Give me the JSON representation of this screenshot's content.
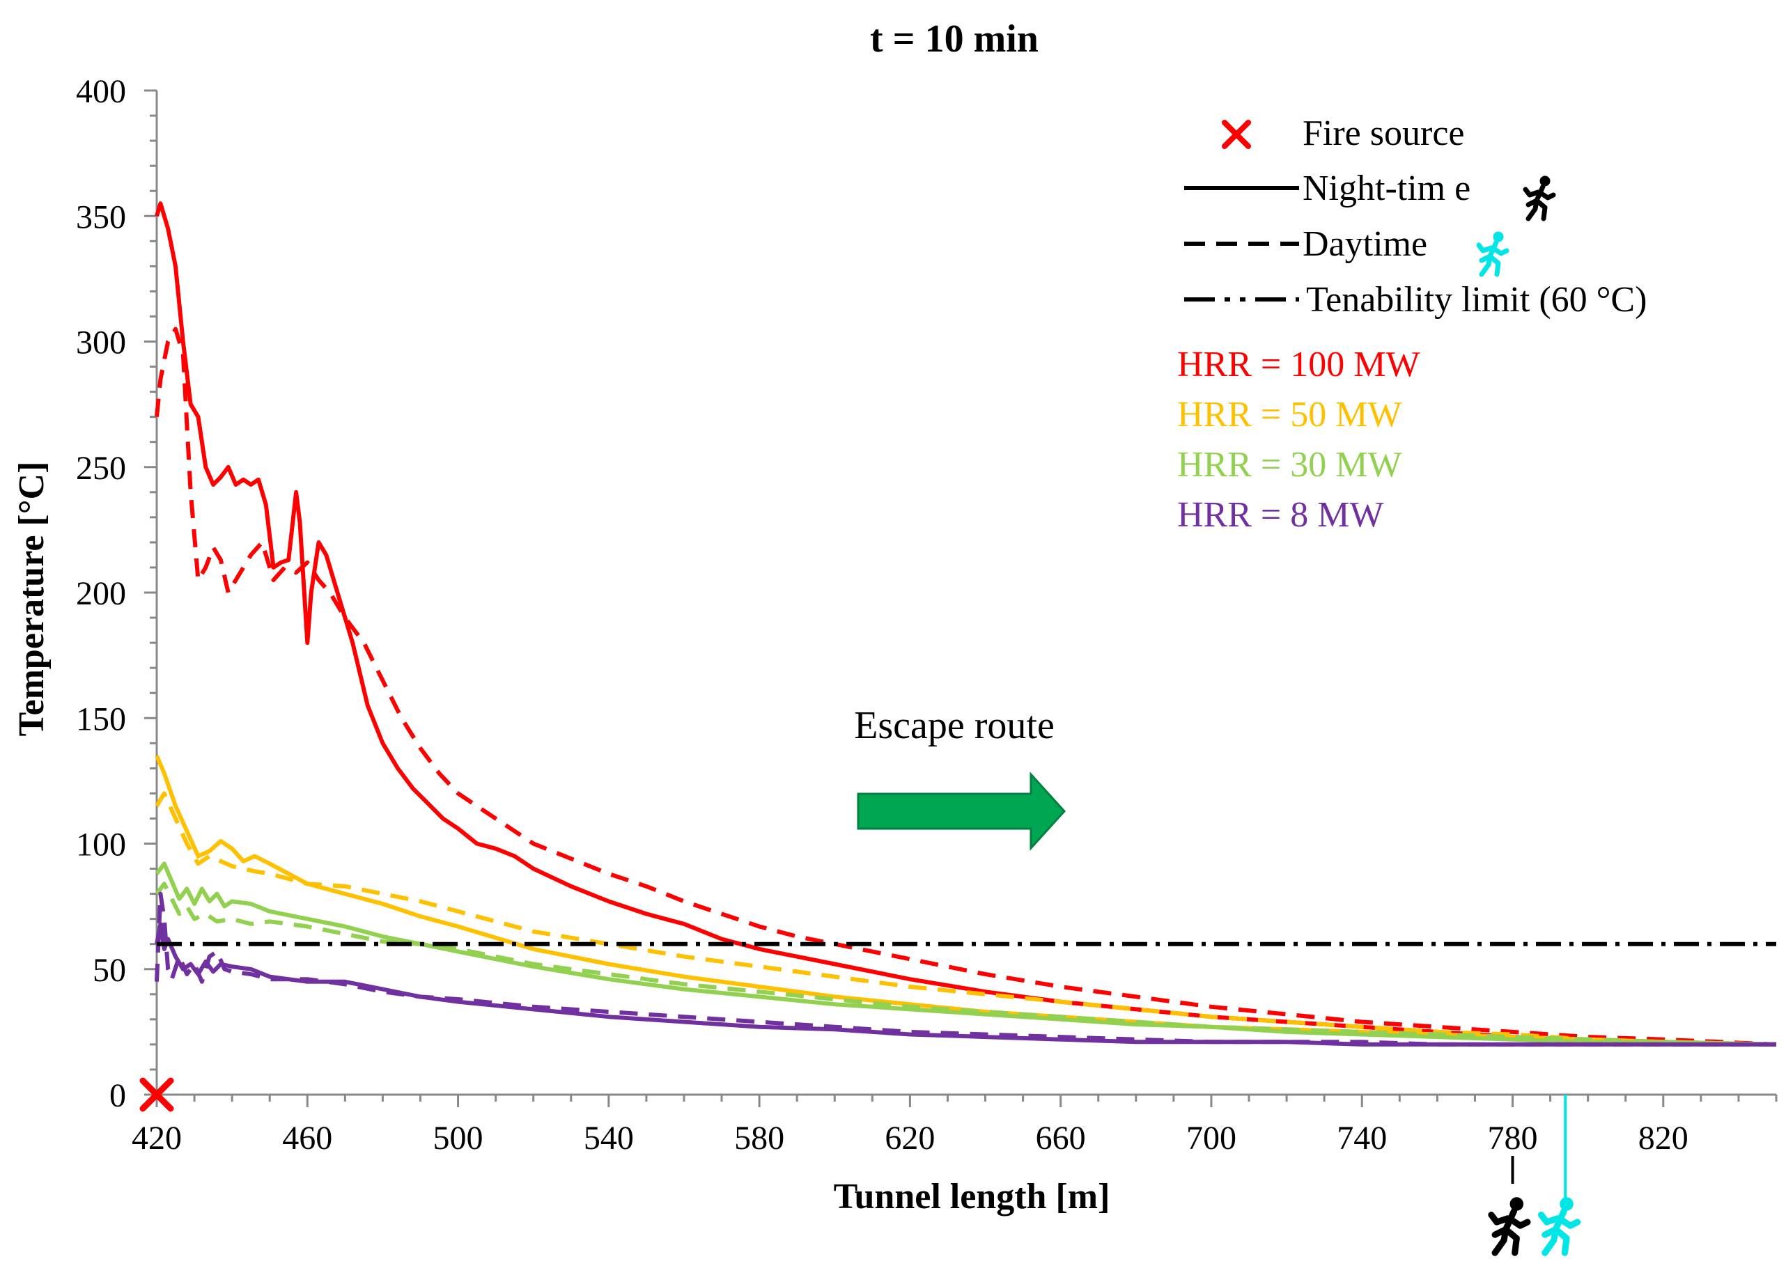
{
  "chart_data": {
    "type": "line",
    "title": "t = 10 min",
    "xlabel": "Tunnel length [m]",
    "ylabel": "Temperature  [°C]",
    "xlim": [
      420,
      850
    ],
    "ylim": [
      0,
      400
    ],
    "xticks": [
      420,
      460,
      500,
      540,
      580,
      620,
      660,
      700,
      740,
      780,
      820
    ],
    "yticks": [
      0,
      50,
      100,
      150,
      200,
      250,
      300,
      350,
      400
    ],
    "grid": false,
    "legend_position": "top-right",
    "legend": {
      "fire_source": "Fire source",
      "night_time": "Night-tim e",
      "daytime": "Daytime",
      "tenability": "Tenability limit (60 °C)"
    },
    "hrr_labels": [
      {
        "label": "HRR  = 100  MW",
        "color": "#ff0000"
      },
      {
        "label": "HRR  = 50  MW",
        "color": "#ffc000"
      },
      {
        "label": "HRR  = 30  MW",
        "color": "#92d050"
      },
      {
        "label": "HRR  = 8  MW",
        "color": "#7030a0"
      }
    ],
    "annotation": {
      "escape_route": "Escape route"
    },
    "tenability_limit": 60,
    "fire_source_x": 420,
    "person_markers": {
      "night_time_x": 780,
      "daytime_x": 794
    },
    "series": [
      {
        "name": "HRR 100 MW night-time",
        "color": "#ff0000",
        "dash": "solid",
        "x": [
          420,
          421,
          423,
          425,
          427,
          429,
          431,
          433,
          435,
          437,
          439,
          441,
          443,
          445,
          447,
          449,
          451,
          453,
          455,
          457,
          458,
          460,
          461,
          463,
          465,
          468,
          472,
          476,
          480,
          484,
          488,
          492,
          496,
          500,
          505,
          510,
          515,
          520,
          530,
          540,
          550,
          555,
          560,
          570,
          580,
          590,
          600,
          620,
          640,
          660,
          680,
          700,
          720,
          740,
          760,
          780,
          800,
          820,
          850
        ],
        "values": [
          350,
          355,
          345,
          330,
          300,
          275,
          270,
          250,
          243,
          246,
          250,
          243,
          245,
          243,
          245,
          235,
          210,
          212,
          213,
          240,
          228,
          180,
          200,
          220,
          215,
          200,
          180,
          155,
          140,
          130,
          122,
          116,
          110,
          106,
          100,
          98,
          95,
          90,
          83,
          77,
          72,
          70,
          68,
          62,
          58,
          55,
          52,
          46,
          41,
          37,
          34,
          31,
          29,
          27,
          25,
          23,
          22,
          21,
          20
        ]
      },
      {
        "name": "HRR 100 MW daytime",
        "color": "#ff0000",
        "dash": "dashed",
        "x": [
          420,
          421,
          423,
          425,
          427,
          429,
          431,
          433,
          435,
          437,
          439,
          441,
          443,
          445,
          448,
          451,
          454,
          457,
          460,
          463,
          466,
          470,
          475,
          480,
          485,
          490,
          495,
          500,
          510,
          520,
          530,
          540,
          550,
          560,
          570,
          580,
          590,
          600,
          620,
          640,
          660,
          680,
          700,
          720,
          740,
          760,
          780,
          800,
          820,
          850
        ],
        "values": [
          270,
          285,
          300,
          305,
          295,
          240,
          205,
          210,
          218,
          213,
          200,
          205,
          210,
          215,
          220,
          205,
          210,
          208,
          212,
          205,
          200,
          190,
          180,
          165,
          150,
          138,
          128,
          120,
          110,
          100,
          94,
          88,
          83,
          77,
          72,
          67,
          63,
          60,
          54,
          48,
          43,
          39,
          35,
          32,
          29,
          27,
          25,
          23,
          22,
          20
        ]
      },
      {
        "name": "HRR 50 MW night-time",
        "color": "#ffc000",
        "dash": "solid",
        "x": [
          420,
          422,
          425,
          428,
          431,
          434,
          437,
          440,
          443,
          446,
          450,
          455,
          460,
          470,
          480,
          490,
          500,
          520,
          540,
          560,
          580,
          600,
          620,
          640,
          660,
          680,
          700,
          720,
          740,
          760,
          780,
          800,
          820,
          850
        ],
        "values": [
          135,
          128,
          115,
          105,
          95,
          97,
          101,
          98,
          93,
          95,
          92,
          88,
          84,
          80,
          76,
          71,
          67,
          58,
          52,
          47,
          43,
          39,
          36,
          33,
          31,
          29,
          27,
          26,
          25,
          24,
          23,
          22,
          21,
          20
        ]
      },
      {
        "name": "HRR 50 MW daytime",
        "color": "#ffc000",
        "dash": "dashed",
        "x": [
          420,
          422,
          425,
          428,
          431,
          434,
          437,
          440,
          443,
          446,
          450,
          455,
          460,
          470,
          480,
          490,
          500,
          520,
          540,
          560,
          580,
          600,
          620,
          640,
          660,
          680,
          700,
          720,
          740,
          760,
          780,
          800,
          820,
          850
        ],
        "values": [
          115,
          120,
          110,
          100,
          92,
          95,
          93,
          91,
          90,
          89,
          88,
          86,
          84,
          83,
          80,
          77,
          73,
          65,
          60,
          55,
          51,
          47,
          43,
          40,
          37,
          34,
          31,
          29,
          27,
          25,
          24,
          22,
          21,
          20
        ]
      },
      {
        "name": "HRR 30 MW night-time",
        "color": "#92d050",
        "dash": "solid",
        "x": [
          420,
          422,
          424,
          426,
          428,
          430,
          432,
          434,
          436,
          438,
          440,
          445,
          450,
          460,
          470,
          480,
          490,
          500,
          520,
          540,
          560,
          580,
          600,
          620,
          640,
          660,
          680,
          700,
          720,
          740,
          760,
          780,
          800,
          820,
          850
        ],
        "values": [
          88,
          92,
          85,
          78,
          82,
          76,
          82,
          77,
          80,
          75,
          77,
          76,
          73,
          70,
          67,
          63,
          60,
          57,
          51,
          46,
          42,
          39,
          36,
          34,
          32,
          30,
          28,
          27,
          25,
          24,
          23,
          22,
          21,
          21,
          20
        ]
      },
      {
        "name": "HRR 30 MW daytime",
        "color": "#92d050",
        "dash": "dashed",
        "x": [
          420,
          422,
          424,
          426,
          428,
          430,
          433,
          436,
          440,
          445,
          450,
          460,
          470,
          480,
          490,
          500,
          520,
          540,
          560,
          580,
          600,
          620,
          640,
          660,
          680,
          700,
          720,
          740,
          760,
          780,
          800,
          820,
          850
        ],
        "values": [
          80,
          84,
          78,
          72,
          75,
          70,
          72,
          69,
          70,
          68,
          69,
          67,
          64,
          61,
          60,
          58,
          52,
          48,
          44,
          41,
          38,
          35,
          33,
          31,
          29,
          27,
          26,
          25,
          24,
          23,
          22,
          21,
          20
        ]
      },
      {
        "name": "HRR 8 MW night-time",
        "color": "#7030a0",
        "dash": "solid",
        "x": [
          420,
          421,
          422,
          423,
          425,
          427,
          429,
          431,
          433,
          435,
          437,
          440,
          445,
          450,
          460,
          470,
          480,
          490,
          500,
          520,
          540,
          560,
          580,
          600,
          620,
          640,
          660,
          680,
          700,
          720,
          740,
          760,
          780,
          800,
          820,
          850
        ],
        "values": [
          60,
          68,
          58,
          62,
          55,
          50,
          52,
          48,
          53,
          49,
          52,
          51,
          50,
          47,
          45,
          45,
          42,
          39,
          37,
          34,
          31,
          29,
          27,
          26,
          24,
          23,
          22,
          21,
          21,
          21,
          20,
          20,
          20,
          20,
          20,
          20
        ]
      },
      {
        "name": "HRR 8 MW daytime",
        "color": "#7030a0",
        "dash": "dashed",
        "x": [
          420,
          421,
          422,
          423,
          424,
          426,
          428,
          430,
          432,
          434,
          436,
          438,
          440,
          445,
          450,
          460,
          470,
          480,
          490,
          500,
          520,
          540,
          560,
          580,
          600,
          620,
          640,
          660,
          680,
          700,
          720,
          740,
          760,
          780,
          800,
          820,
          850
        ],
        "values": [
          45,
          80,
          70,
          50,
          46,
          55,
          48,
          52,
          45,
          55,
          57,
          50,
          49,
          48,
          46,
          46,
          44,
          41,
          39,
          38,
          35,
          33,
          31,
          29,
          27,
          25,
          24,
          23,
          22,
          21,
          21,
          21,
          20,
          20,
          20,
          20,
          20
        ]
      }
    ]
  }
}
